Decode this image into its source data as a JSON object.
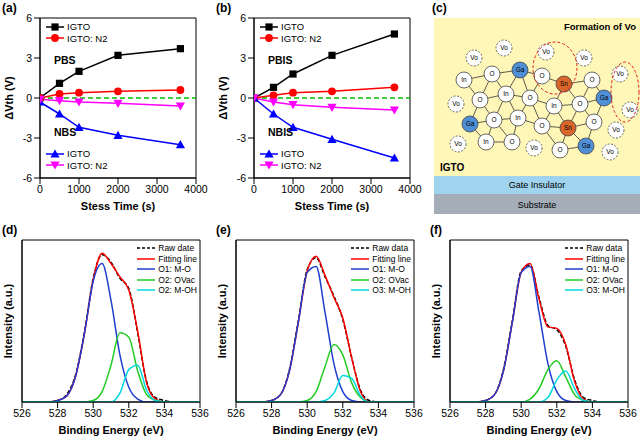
{
  "chart_data": [
    {
      "type": "line",
      "title": "(a)",
      "x_label": "Stess Time (s)",
      "y_label": "ΔVth (V)",
      "x": [
        0,
        500,
        1000,
        2000,
        3600
      ],
      "xlim": [
        0,
        4000
      ],
      "xticks": [
        0,
        1000,
        2000,
        3000,
        4000
      ],
      "ylim": [
        -6,
        6
      ],
      "yticks": [
        -6,
        -3,
        0,
        3,
        6
      ],
      "baseline": 0,
      "annotations": [
        "PBS",
        "NBS"
      ],
      "legend": "left",
      "grid": false,
      "series": [
        {
          "name": "IGTO",
          "color": "#000000",
          "marker": "square",
          "values": [
            0,
            1.1,
            2.0,
            3.2,
            3.7
          ]
        },
        {
          "name": "IGTO: N2",
          "color": "#ff0000",
          "marker": "circle",
          "values": [
            0,
            0.3,
            0.4,
            0.5,
            0.6
          ]
        },
        {
          "name": "IGTO",
          "color": "#0000ff",
          "marker": "triangle",
          "values": [
            -0.3,
            -1.2,
            -2.2,
            -2.8,
            -3.5
          ]
        },
        {
          "name": "IGTO: N2",
          "color": "#ff00ff",
          "marker": "triangle-down",
          "values": [
            -0.1,
            -0.2,
            -0.3,
            -0.4,
            -0.6
          ]
        }
      ]
    },
    {
      "type": "line",
      "title": "(b)",
      "x_label": "Stess Time (s)",
      "y_label": "ΔVth (V)",
      "x": [
        0,
        500,
        1000,
        2000,
        3600
      ],
      "xlim": [
        0,
        4000
      ],
      "xticks": [
        0,
        1000,
        2000,
        3000,
        4000
      ],
      "ylim": [
        -6,
        6
      ],
      "yticks": [
        -6,
        -3,
        0,
        3,
        6
      ],
      "baseline": 0,
      "annotations": [
        "PBIS",
        "NBIS"
      ],
      "legend": "left",
      "grid": false,
      "series": [
        {
          "name": "IGTO",
          "color": "#000000",
          "marker": "square",
          "values": [
            0,
            0.8,
            1.8,
            3.2,
            4.8
          ]
        },
        {
          "name": "IGTO: N2",
          "color": "#ff0000",
          "marker": "circle",
          "values": [
            0,
            0.2,
            0.4,
            0.5,
            0.8
          ]
        },
        {
          "name": "IGTO",
          "color": "#0000ff",
          "marker": "triangle",
          "values": [
            0,
            -1.2,
            -2.2,
            -3.1,
            -4.5
          ]
        },
        {
          "name": "IGTO: N2",
          "color": "#ff00ff",
          "marker": "triangle-down",
          "values": [
            0,
            -0.3,
            -0.5,
            -0.7,
            -0.9
          ]
        }
      ]
    },
    {
      "type": "line",
      "title": "(d)",
      "x_label": "Binding Energy (eV)",
      "y_label": "Intensity (a.u.)",
      "x": [
        526,
        526.5,
        527,
        527.5,
        528,
        528.5,
        529,
        529.5,
        530,
        530.5,
        531,
        531.5,
        532,
        532.5,
        533,
        533.5,
        534,
        534.5,
        535,
        535.5,
        536
      ],
      "xlim": [
        526,
        536
      ],
      "xticks": [
        526,
        528,
        530,
        532,
        534,
        536
      ],
      "ylim": [
        0,
        1.1
      ],
      "yticks": [],
      "tick_labels": "x",
      "legend": "upper right",
      "grid": false,
      "series": [
        {
          "name": "Raw date",
          "color": "#000000",
          "line_style": "dashed",
          "values": [
            0,
            0,
            0,
            0,
            0.01,
            0.05,
            0.18,
            0.47,
            0.84,
            1.0,
            0.95,
            0.84,
            0.77,
            0.47,
            0.14,
            0.03,
            0.01,
            0,
            0,
            0,
            0
          ]
        },
        {
          "name": "Fitting line",
          "color": "#ff0000",
          "line_style": "solid",
          "values": [
            0,
            0,
            0,
            0,
            0.01,
            0.04,
            0.17,
            0.46,
            0.83,
            1.01,
            0.94,
            0.85,
            0.76,
            0.48,
            0.13,
            0.02,
            0,
            0,
            0,
            0,
            0
          ]
        },
        {
          "name": "O1: M-O",
          "color": "#1f3fd0",
          "line_style": "solid",
          "values": [
            0,
            0,
            0,
            0,
            0.01,
            0.04,
            0.17,
            0.46,
            0.82,
            0.94,
            0.69,
            0.32,
            0.1,
            0.02,
            0,
            0,
            0,
            0,
            0,
            0,
            0
          ]
        },
        {
          "name": "O2: OVac",
          "color": "#22cc22",
          "line_style": "solid",
          "values": [
            0,
            0,
            0,
            0,
            0,
            0,
            0,
            0,
            0.01,
            0.07,
            0.25,
            0.47,
            0.44,
            0.21,
            0.05,
            0.01,
            0,
            0,
            0,
            0,
            0
          ]
        },
        {
          "name": "O2: M-OH",
          "color": "#00d8e0",
          "line_style": "solid",
          "values": [
            0,
            0,
            0,
            0,
            0,
            0,
            0,
            0,
            0,
            0,
            0,
            0.06,
            0.22,
            0.25,
            0.08,
            0.01,
            0,
            0,
            0,
            0,
            0
          ]
        }
      ]
    },
    {
      "type": "line",
      "title": "(e)",
      "x_label": "Binding Energy (eV)",
      "y_label": "Intensity (a.u.)",
      "x": [
        526,
        526.5,
        527,
        527.5,
        528,
        528.5,
        529,
        529.5,
        530,
        530.5,
        531,
        531.5,
        532,
        532.5,
        533,
        533.5,
        534,
        534.5,
        535,
        535.5,
        536
      ],
      "xlim": [
        526,
        536
      ],
      "xticks": [
        526,
        528,
        530,
        532,
        534,
        536
      ],
      "ylim": [
        0,
        1.1
      ],
      "yticks": [],
      "tick_labels": "x",
      "legend": "upper right",
      "grid": false,
      "series": [
        {
          "name": "Raw data",
          "color": "#000000",
          "line_style": "dashed",
          "values": [
            0,
            0,
            0,
            0,
            0.01,
            0.05,
            0.22,
            0.55,
            0.9,
            0.98,
            0.85,
            0.72,
            0.56,
            0.3,
            0.08,
            0.01,
            0,
            0,
            0,
            0,
            0
          ]
        },
        {
          "name": "Fitting line",
          "color": "#ff0000",
          "line_style": "solid",
          "values": [
            0,
            0,
            0,
            0,
            0.01,
            0.05,
            0.21,
            0.54,
            0.89,
            0.99,
            0.86,
            0.71,
            0.57,
            0.3,
            0.07,
            0,
            0,
            0,
            0,
            0,
            0
          ]
        },
        {
          "name": "O1: M-O",
          "color": "#1f3fd0",
          "line_style": "solid",
          "values": [
            0,
            0,
            0,
            0,
            0.01,
            0.05,
            0.21,
            0.54,
            0.88,
            0.92,
            0.61,
            0.26,
            0.07,
            0.01,
            0,
            0,
            0,
            0,
            0,
            0,
            0
          ]
        },
        {
          "name": "O2: OVac",
          "color": "#22cc22",
          "line_style": "solid",
          "values": [
            0,
            0,
            0,
            0,
            0,
            0,
            0,
            0,
            0.01,
            0.07,
            0.24,
            0.39,
            0.32,
            0.13,
            0.03,
            0,
            0,
            0,
            0,
            0,
            0
          ]
        },
        {
          "name": "O3: M-OH",
          "color": "#00d8e0",
          "line_style": "solid",
          "values": [
            0,
            0,
            0,
            0,
            0,
            0,
            0,
            0,
            0,
            0,
            0.01,
            0.06,
            0.18,
            0.16,
            0.04,
            0,
            0,
            0,
            0,
            0,
            0
          ]
        }
      ]
    },
    {
      "type": "line",
      "title": "(f)",
      "x_label": "Binding Energy (eV)",
      "y_label": "Intensity (a.u.)",
      "x": [
        526,
        526.5,
        527,
        527.5,
        528,
        528.5,
        529,
        529.5,
        530,
        530.5,
        531,
        531.5,
        532,
        532.5,
        533,
        533.5,
        534,
        534.5,
        535,
        535.5,
        536
      ],
      "xlim": [
        526,
        536
      ],
      "xticks": [
        526,
        528,
        530,
        532,
        534,
        536
      ],
      "ylim": [
        0,
        1.1
      ],
      "yticks": [],
      "tick_labels": "x",
      "legend": "upper right",
      "grid": false,
      "series": [
        {
          "name": "Raw data",
          "color": "#000000",
          "line_style": "dashed",
          "values": [
            0,
            0,
            0,
            0,
            0.01,
            0.05,
            0.22,
            0.55,
            0.89,
            0.93,
            0.71,
            0.52,
            0.49,
            0.38,
            0.15,
            0.03,
            0.01,
            0,
            0,
            0,
            0
          ]
        },
        {
          "name": "Fitting line",
          "color": "#ff0000",
          "line_style": "solid",
          "values": [
            0,
            0,
            0,
            0,
            0.01,
            0.05,
            0.21,
            0.54,
            0.88,
            0.94,
            0.7,
            0.51,
            0.5,
            0.39,
            0.14,
            0.02,
            0,
            0,
            0,
            0,
            0
          ]
        },
        {
          "name": "O1: M-O",
          "color": "#1f3fd0",
          "line_style": "solid",
          "values": [
            0,
            0,
            0,
            0,
            0.01,
            0.05,
            0.21,
            0.54,
            0.88,
            0.92,
            0.61,
            0.26,
            0.07,
            0.01,
            0,
            0,
            0,
            0,
            0,
            0,
            0
          ]
        },
        {
          "name": "O2: OVac",
          "color": "#22cc22",
          "line_style": "solid",
          "values": [
            0,
            0,
            0,
            0,
            0,
            0,
            0,
            0,
            0,
            0.02,
            0.09,
            0.22,
            0.28,
            0.17,
            0.05,
            0.01,
            0,
            0,
            0,
            0,
            0
          ]
        },
        {
          "name": "O3: M-OH",
          "color": "#00d8e0",
          "line_style": "solid",
          "values": [
            0,
            0,
            0,
            0,
            0,
            0,
            0,
            0,
            0,
            0,
            0,
            0.03,
            0.15,
            0.21,
            0.09,
            0.01,
            0,
            0,
            0,
            0,
            0
          ]
        }
      ]
    }
  ],
  "diagram": {
    "title": "(c)",
    "caption": "Formation of Vo",
    "layers": [
      "IGTO",
      "Gate Insulator",
      "Substrate"
    ],
    "atoms": [
      "Vo",
      "Vo",
      "Vo",
      "Vo",
      "In",
      "O",
      "Ga",
      "O",
      "Sn",
      "O",
      "Vo",
      "Vo",
      "O",
      "In",
      "O",
      "In",
      "O",
      "Ga",
      "Vo",
      "Ga",
      "O",
      "In",
      "O",
      "Sn",
      "O",
      "Vo",
      "Vo",
      "In",
      "O",
      "Vo",
      "O",
      "Ga",
      "Vo"
    ]
  }
}
